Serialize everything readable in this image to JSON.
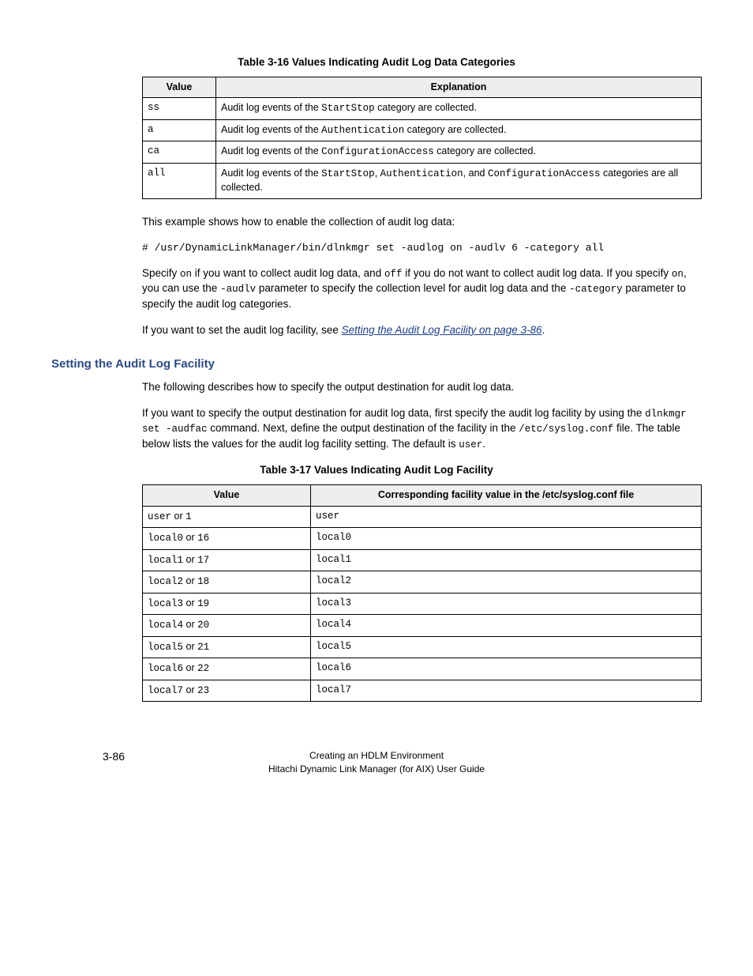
{
  "table16": {
    "caption": "Table 3-16 Values Indicating Audit Log Data Categories",
    "headers": [
      "Value",
      "Explanation"
    ],
    "rows": [
      {
        "val": "ss",
        "pre": "Audit log events of the ",
        "code": "StartStop",
        "post": " category are collected."
      },
      {
        "val": "a",
        "pre": "Audit log events of the ",
        "code": "Authentication",
        "post": " category are collected."
      },
      {
        "val": "ca",
        "pre": "Audit log events of the ",
        "code": "ConfigurationAccess",
        "post": " category are collected."
      },
      {
        "val": "all",
        "pre": "Audit log events of the ",
        "code": "StartStop",
        "mid1": ", ",
        "code2": "Authentication",
        "mid2": ", and ",
        "code3": "ConfigurationAccess",
        "post": " categories are all collected."
      }
    ]
  },
  "para1": "This example shows how to enable the collection of audit log data:",
  "cmdblock": "# /usr/DynamicLinkManager/bin/dlnkmgr set -audlog on -audlv 6 -category all",
  "para2": {
    "t1": "Specify ",
    "c1": "on",
    "t2": " if you want to collect audit log data, and ",
    "c2": "off",
    "t3": " if you do not want to collect audit log data. If you specify ",
    "c3": "on",
    "t4": ", you can use the ",
    "c4": "-audlv",
    "t5": " parameter to specify the collection level for audit log data and the ",
    "c5": "-category",
    "t6": " parameter to specify the audit log categories."
  },
  "para3": {
    "t1": "If you want to set the audit log facility, see ",
    "link": "Setting the Audit Log Facility on page 3-86",
    "t2": "."
  },
  "section_heading": "Setting the Audit Log Facility",
  "para4": "The following describes how to specify the output destination for audit log data.",
  "para5": {
    "t1": "If you want to specify the output destination for audit log data, first specify the audit log facility by using the ",
    "c1": "dlnkmgr set -audfac",
    "t2": " command. Next, define the output destination of the facility in the ",
    "c2": "/etc/syslog.conf",
    "t3": " file. The table below lists the values for the audit log facility setting. The default is ",
    "c3": "user",
    "t4": "."
  },
  "table17": {
    "caption": "Table 3-17 Values Indicating Audit Log Facility",
    "headers": [
      "Value",
      "Corresponding facility value in the /etc/syslog.conf file"
    ],
    "rows": [
      {
        "a": "user",
        "b": "1",
        "c": "user"
      },
      {
        "a": "local0",
        "b": "16",
        "c": "local0"
      },
      {
        "a": "local1",
        "b": "17",
        "c": "local1"
      },
      {
        "a": "local2",
        "b": "18",
        "c": "local2"
      },
      {
        "a": "local3",
        "b": "19",
        "c": "local3"
      },
      {
        "a": "local4",
        "b": "20",
        "c": "local4"
      },
      {
        "a": "local5",
        "b": "21",
        "c": "local5"
      },
      {
        "a": "local6",
        "b": "22",
        "c": "local6"
      },
      {
        "a": "local7",
        "b": "23",
        "c": "local7"
      }
    ]
  },
  "footer": {
    "page": "3-86",
    "line1": "Creating an HDLM Environment",
    "line2": "Hitachi Dynamic Link Manager (for AIX) User Guide"
  },
  "or_text": " or "
}
